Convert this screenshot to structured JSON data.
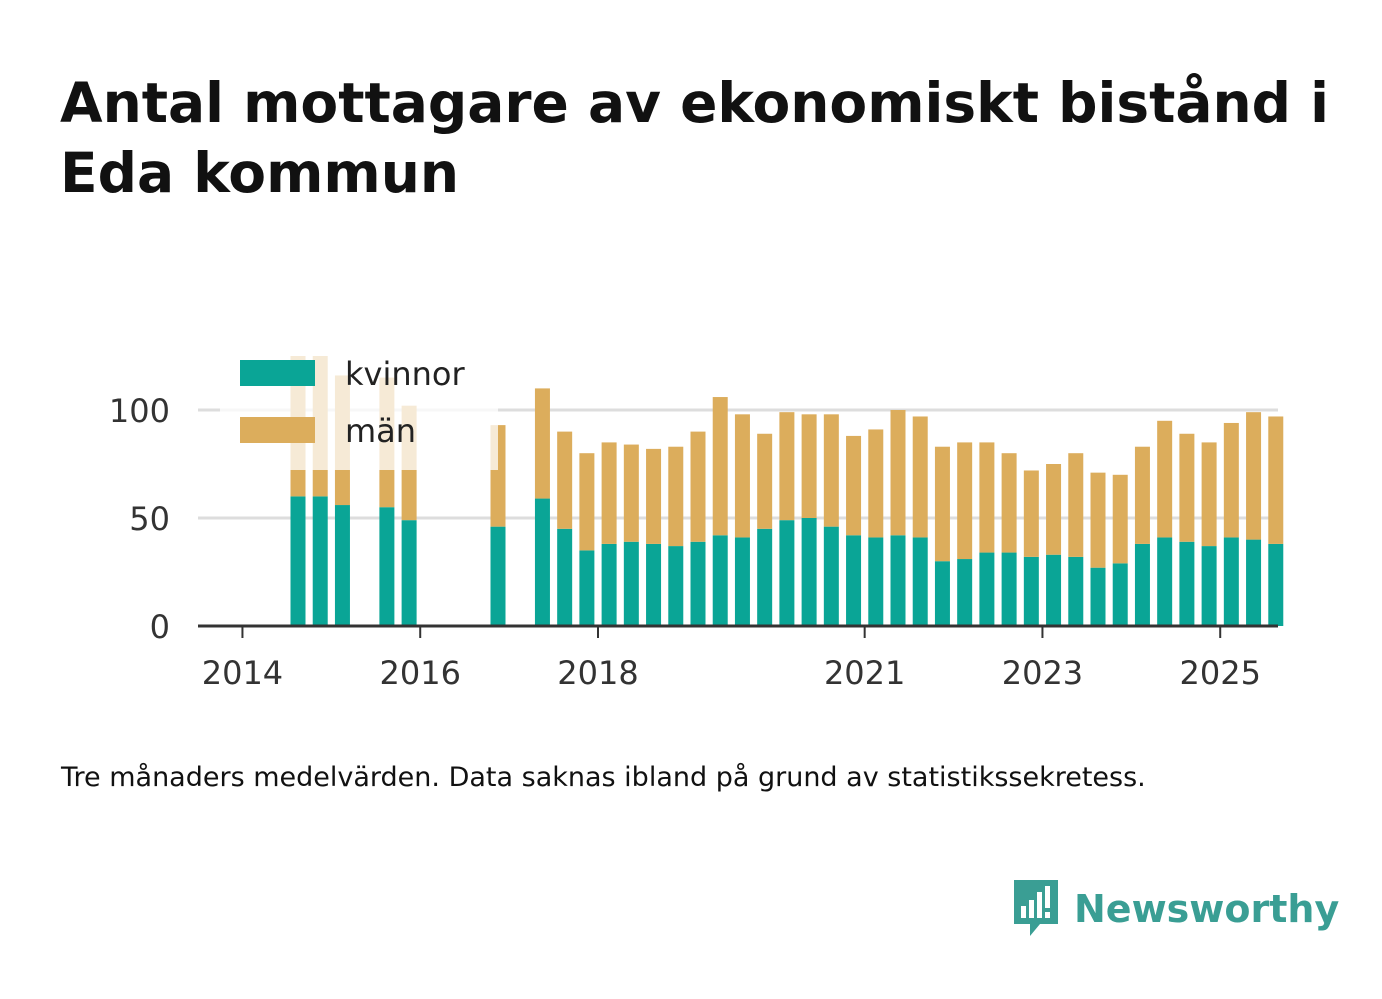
{
  "title": "Antal mottagare av ekonomiskt bistånd i Eda kommun",
  "note": "Tre månaders medelvärden. Data saknas ibland på grund av statistikssekretess.",
  "brand": {
    "name": "Newsworthy",
    "color": "#3a9e94"
  },
  "colors": {
    "kvinnor": "#0aa596",
    "man": "#dcad5c",
    "grid": "#dddddd",
    "axis": "#333333",
    "text": "#333333"
  },
  "chart_data": {
    "type": "bar",
    "stacked": true,
    "ylim": [
      0,
      125
    ],
    "yticks": [
      0,
      50,
      100
    ],
    "xlim": [
      2013.5,
      2025.65
    ],
    "xticks": [
      {
        "value": 2014,
        "label": "2014"
      },
      {
        "value": 2016,
        "label": "2016"
      },
      {
        "value": 2018,
        "label": "2018"
      },
      {
        "value": 2021,
        "label": "2021"
      },
      {
        "value": 2023,
        "label": "2023"
      },
      {
        "value": 2025,
        "label": "2025"
      }
    ],
    "legend": {
      "position": "top-left",
      "items": [
        {
          "key": "kvinnor",
          "label": "kvinnor"
        },
        {
          "key": "man",
          "label": "män"
        }
      ]
    },
    "period_width": 0.25,
    "bars": [
      {
        "period": 2014.5,
        "kvinnor": 60,
        "man": 65
      },
      {
        "period": 2014.75,
        "kvinnor": 60,
        "man": 65
      },
      {
        "period": 2015.0,
        "kvinnor": 56,
        "man": 60
      },
      {
        "period": 2015.5,
        "kvinnor": 55,
        "man": 60
      },
      {
        "period": 2015.75,
        "kvinnor": 49,
        "man": 53
      },
      {
        "period": 2016.75,
        "kvinnor": 46,
        "man": 47
      },
      {
        "period": 2017.25,
        "kvinnor": 59,
        "man": 51
      },
      {
        "period": 2017.5,
        "kvinnor": 45,
        "man": 45
      },
      {
        "period": 2017.75,
        "kvinnor": 35,
        "man": 45
      },
      {
        "period": 2018.0,
        "kvinnor": 38,
        "man": 47
      },
      {
        "period": 2018.25,
        "kvinnor": 39,
        "man": 45
      },
      {
        "period": 2018.5,
        "kvinnor": 38,
        "man": 44
      },
      {
        "period": 2018.75,
        "kvinnor": 37,
        "man": 46
      },
      {
        "period": 2019.0,
        "kvinnor": 39,
        "man": 51
      },
      {
        "period": 2019.25,
        "kvinnor": 42,
        "man": 64
      },
      {
        "period": 2019.5,
        "kvinnor": 41,
        "man": 57
      },
      {
        "period": 2019.75,
        "kvinnor": 45,
        "man": 44
      },
      {
        "period": 2020.0,
        "kvinnor": 49,
        "man": 50
      },
      {
        "period": 2020.25,
        "kvinnor": 50,
        "man": 48
      },
      {
        "period": 2020.5,
        "kvinnor": 46,
        "man": 52
      },
      {
        "period": 2020.75,
        "kvinnor": 42,
        "man": 46
      },
      {
        "period": 2021.0,
        "kvinnor": 41,
        "man": 50
      },
      {
        "period": 2021.25,
        "kvinnor": 42,
        "man": 58
      },
      {
        "period": 2021.5,
        "kvinnor": 41,
        "man": 56
      },
      {
        "period": 2021.75,
        "kvinnor": 30,
        "man": 53
      },
      {
        "period": 2022.0,
        "kvinnor": 31,
        "man": 54
      },
      {
        "period": 2022.25,
        "kvinnor": 34,
        "man": 51
      },
      {
        "period": 2022.5,
        "kvinnor": 34,
        "man": 46
      },
      {
        "period": 2022.75,
        "kvinnor": 32,
        "man": 40
      },
      {
        "period": 2023.0,
        "kvinnor": 33,
        "man": 42
      },
      {
        "period": 2023.25,
        "kvinnor": 32,
        "man": 48
      },
      {
        "period": 2023.5,
        "kvinnor": 27,
        "man": 44
      },
      {
        "period": 2023.75,
        "kvinnor": 29,
        "man": 41
      },
      {
        "period": 2024.0,
        "kvinnor": 38,
        "man": 45
      },
      {
        "period": 2024.25,
        "kvinnor": 41,
        "man": 54
      },
      {
        "period": 2024.5,
        "kvinnor": 39,
        "man": 50
      },
      {
        "period": 2024.75,
        "kvinnor": 37,
        "man": 48
      },
      {
        "period": 2025.0,
        "kvinnor": 41,
        "man": 53
      },
      {
        "period": 2025.25,
        "kvinnor": 40,
        "man": 59
      },
      {
        "period": 2025.5,
        "kvinnor": 38,
        "man": 59
      }
    ]
  }
}
